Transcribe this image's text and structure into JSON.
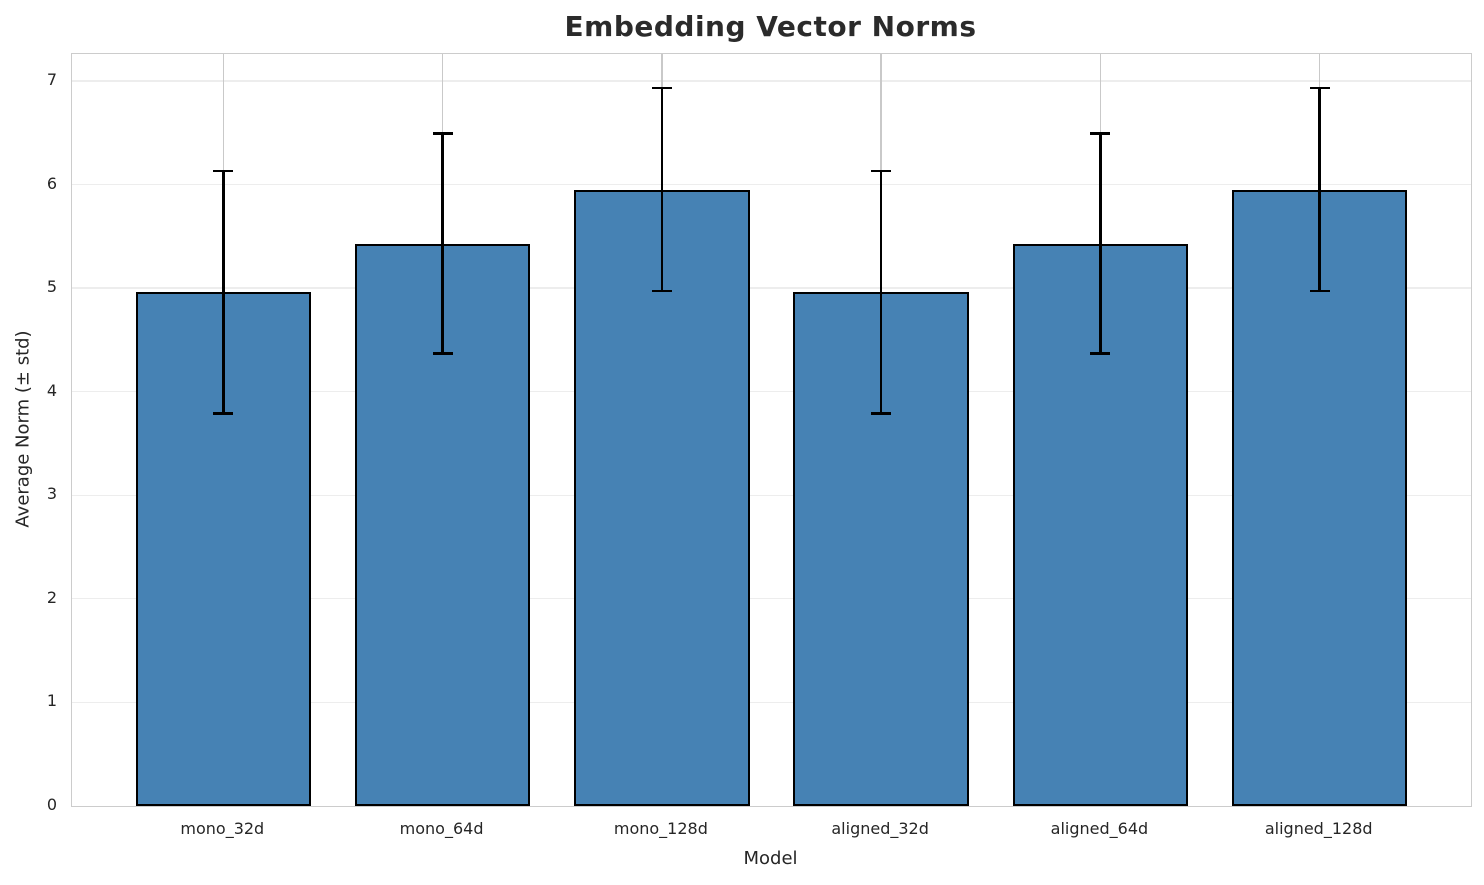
{
  "chart_data": {
    "type": "bar",
    "title": "Embedding Vector Norms",
    "xlabel": "Model",
    "ylabel": "Average Norm (± std)",
    "categories": [
      "mono_32d",
      "mono_64d",
      "mono_128d",
      "aligned_32d",
      "aligned_64d",
      "aligned_128d"
    ],
    "values": [
      4.96,
      5.43,
      5.95,
      4.96,
      5.43,
      5.95
    ],
    "errors": [
      1.17,
      1.06,
      0.98,
      1.17,
      1.06,
      0.98
    ],
    "yticks": [
      0,
      1,
      2,
      3,
      4,
      5,
      6,
      7
    ],
    "ylim": [
      0,
      7.26
    ],
    "xlim": [
      -0.69,
      5.69
    ],
    "bar_width_units": 0.8,
    "grid": "both",
    "legend": "none",
    "colors": {
      "bar_fill": "#4682B4",
      "bar_edge": "#000000",
      "error_bar": "#000000",
      "grid_horizontal": "#ededed",
      "grid_vertical": "#c9c9c9",
      "spine": "#cccccc",
      "text": "#262626"
    }
  }
}
